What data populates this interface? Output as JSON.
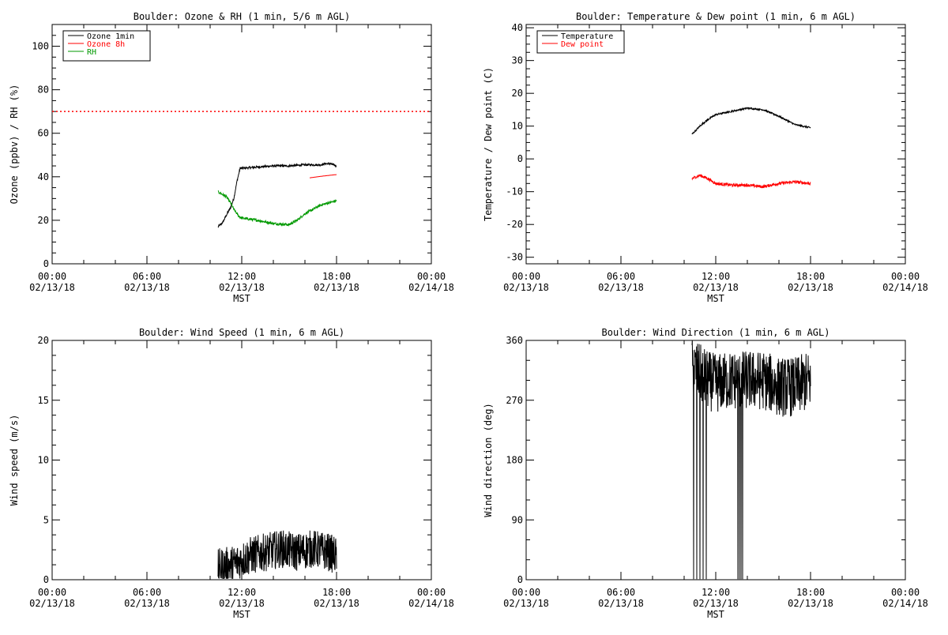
{
  "chart_data": [
    {
      "id": "ozone",
      "type": "line",
      "title": "Boulder: Ozone & RH (1 min, 5/6 m AGL)",
      "xlabel": "MST",
      "ylabel": "Ozone (ppbv) / RH (%)",
      "xlim": [
        0,
        24
      ],
      "ylim": [
        0,
        110
      ],
      "yticks": [
        0,
        20,
        40,
        60,
        80,
        100
      ],
      "xticks": [
        {
          "v": 0,
          "time": "00:00",
          "date": "02/13/18"
        },
        {
          "v": 6,
          "time": "06:00",
          "date": "02/13/18"
        },
        {
          "v": 12,
          "time": "12:00",
          "date": "02/13/18"
        },
        {
          "v": 18,
          "time": "18:00",
          "date": "02/13/18"
        },
        {
          "v": 24,
          "time": "00:00",
          "date": "02/14/18"
        }
      ],
      "legend_position": "top-left",
      "reference_line": {
        "y": 70,
        "color": "#ff0000",
        "style": "dotted"
      },
      "series": [
        {
          "name": "Ozone 1min",
          "color": "#000000",
          "noise": 0.5,
          "points": [
            [
              10.5,
              17
            ],
            [
              10.8,
              19
            ],
            [
              11.0,
              22
            ],
            [
              11.3,
              26
            ],
            [
              11.5,
              30
            ],
            [
              11.7,
              38
            ],
            [
              11.9,
              44
            ],
            [
              12.2,
              44
            ],
            [
              13.0,
              44.5
            ],
            [
              14.0,
              45
            ],
            [
              15.0,
              45
            ],
            [
              16.0,
              45.5
            ],
            [
              17.0,
              45.5
            ],
            [
              17.3,
              46
            ],
            [
              17.6,
              46
            ],
            [
              18.0,
              45
            ]
          ]
        },
        {
          "name": "Ozone 8h",
          "color": "#ff0000",
          "noise": 0.0,
          "points": [
            [
              16.3,
              39.5
            ],
            [
              17.0,
              40.2
            ],
            [
              17.6,
              40.7
            ],
            [
              18.0,
              41
            ]
          ]
        },
        {
          "name": "RH",
          "color": "#009900",
          "noise": 0.6,
          "points": [
            [
              10.5,
              33
            ],
            [
              11.0,
              31
            ],
            [
              11.3,
              28
            ],
            [
              11.5,
              25
            ],
            [
              11.8,
              22
            ],
            [
              12.0,
              21
            ],
            [
              13.0,
              20
            ],
            [
              14.0,
              18.5
            ],
            [
              15.0,
              18
            ],
            [
              15.5,
              20
            ],
            [
              16.0,
              23
            ],
            [
              16.5,
              25
            ],
            [
              17.0,
              27
            ],
            [
              17.5,
              28
            ],
            [
              18.0,
              29
            ]
          ]
        }
      ]
    },
    {
      "id": "temperature",
      "type": "line",
      "title": "Boulder: Temperature & Dew point (1 min, 6 m AGL)",
      "xlabel": "MST",
      "ylabel": "Temperature / Dew point (C)",
      "xlim": [
        0,
        24
      ],
      "ylim": [
        -32,
        41
      ],
      "yticks": [
        -30,
        -20,
        -10,
        0,
        10,
        20,
        30,
        40
      ],
      "xticks": [
        {
          "v": 0,
          "time": "00:00",
          "date": "02/13/18"
        },
        {
          "v": 6,
          "time": "06:00",
          "date": "02/13/18"
        },
        {
          "v": 12,
          "time": "12:00",
          "date": "02/13/18"
        },
        {
          "v": 18,
          "time": "18:00",
          "date": "02/13/18"
        },
        {
          "v": 24,
          "time": "00:00",
          "date": "02/14/18"
        }
      ],
      "legend_position": "top-left",
      "series": [
        {
          "name": "Temperature",
          "color": "#000000",
          "noise": 0.25,
          "points": [
            [
              10.5,
              7.5
            ],
            [
              11.0,
              10
            ],
            [
              11.5,
              12
            ],
            [
              12.0,
              13.5
            ],
            [
              13.0,
              14.5
            ],
            [
              14.0,
              15.5
            ],
            [
              15.0,
              15
            ],
            [
              16.0,
              13
            ],
            [
              17.0,
              10.5
            ],
            [
              18.0,
              9.5
            ]
          ]
        },
        {
          "name": "Dew point",
          "color": "#ff0000",
          "noise": 0.45,
          "points": [
            [
              10.5,
              -6
            ],
            [
              11.0,
              -5
            ],
            [
              11.5,
              -6
            ],
            [
              12.0,
              -7.5
            ],
            [
              13.0,
              -8
            ],
            [
              14.0,
              -8
            ],
            [
              15.0,
              -8.5
            ],
            [
              16.0,
              -7.5
            ],
            [
              17.0,
              -7
            ],
            [
              18.0,
              -7.5
            ]
          ]
        }
      ]
    },
    {
      "id": "windspeed",
      "type": "line",
      "title": "Boulder: Wind Speed (1 min, 6 m AGL)",
      "xlabel": "MST",
      "ylabel": "Wind speed (m/s)",
      "xlim": [
        0,
        24
      ],
      "ylim": [
        0,
        20
      ],
      "yticks": [
        0,
        5,
        10,
        15,
        20
      ],
      "xticks": [
        {
          "v": 0,
          "time": "00:00",
          "date": "02/13/18"
        },
        {
          "v": 6,
          "time": "06:00",
          "date": "02/13/18"
        },
        {
          "v": 12,
          "time": "12:00",
          "date": "02/13/18"
        },
        {
          "v": 18,
          "time": "18:00",
          "date": "02/13/18"
        },
        {
          "v": 24,
          "time": "00:00",
          "date": "02/14/18"
        }
      ],
      "series": [
        {
          "color": "#000000",
          "noise": 1.6,
          "points": [
            [
              10.5,
              1
            ],
            [
              11.5,
              1.3
            ],
            [
              12.5,
              2
            ],
            [
              13.5,
              2.3
            ],
            [
              14.5,
              2.6
            ],
            [
              15.5,
              2.3
            ],
            [
              16.5,
              2.6
            ],
            [
              17.5,
              2.3
            ],
            [
              18.0,
              2
            ]
          ]
        }
      ]
    },
    {
      "id": "winddir",
      "type": "line",
      "title": "Boulder: Wind Direction (1 min, 6 m AGL)",
      "xlabel": "MST",
      "ylabel": "Wind direction (deg)",
      "xlim": [
        0,
        24
      ],
      "ylim": [
        0,
        360
      ],
      "yticks": [
        0,
        90,
        180,
        270,
        360
      ],
      "xticks": [
        {
          "v": 0,
          "time": "00:00",
          "date": "02/13/18"
        },
        {
          "v": 6,
          "time": "06:00",
          "date": "02/13/18"
        },
        {
          "v": 12,
          "time": "12:00",
          "date": "02/13/18"
        },
        {
          "v": 18,
          "time": "18:00",
          "date": "02/13/18"
        },
        {
          "v": 24,
          "time": "00:00",
          "date": "02/14/18"
        }
      ],
      "series": [
        {
          "color": "#000000",
          "noise": 45,
          "clip": [
            0,
            360
          ],
          "points": [
            [
              10.5,
              320
            ],
            [
              11.0,
              310
            ],
            [
              11.5,
              300
            ],
            [
              12.0,
              295
            ],
            [
              13.0,
              300
            ],
            [
              14.0,
              300
            ],
            [
              15.0,
              300
            ],
            [
              16.0,
              290
            ],
            [
              17.0,
              290
            ],
            [
              18.0,
              300
            ]
          ],
          "spikes_to_zero": [
            10.6,
            10.8,
            11.0,
            11.2,
            11.4,
            13.4,
            13.5,
            13.6,
            13.7
          ]
        }
      ]
    }
  ]
}
